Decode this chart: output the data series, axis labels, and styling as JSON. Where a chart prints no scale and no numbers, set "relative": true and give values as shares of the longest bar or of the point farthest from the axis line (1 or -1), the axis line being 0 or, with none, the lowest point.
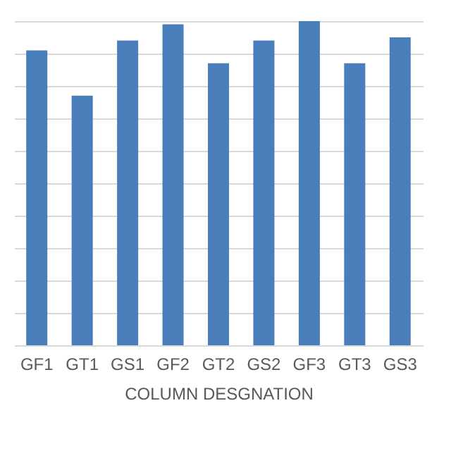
{
  "chart_data": {
    "type": "bar",
    "xlabel": "COLUMN DESGNATION",
    "relative": true,
    "grid": "y",
    "categories": [
      "GF1",
      "GT1",
      "GS1",
      "GF2",
      "GT2",
      "GS2",
      "GF3",
      "GT3",
      "GS3"
    ],
    "series": [
      {
        "color": "#4a7ebb",
        "values": [
          0.91,
          0.77,
          0.94,
          0.99,
          0.87,
          0.94,
          1,
          0.87,
          0.95
        ]
      }
    ]
  }
}
